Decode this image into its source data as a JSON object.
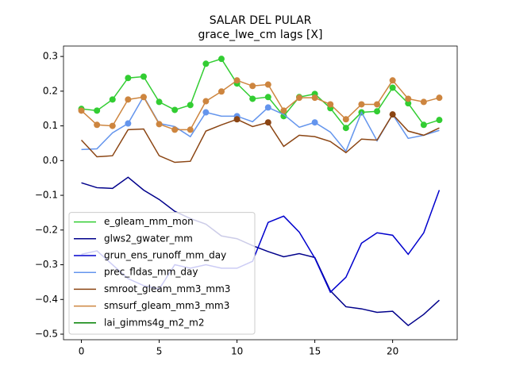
{
  "chart_data": {
    "type": "line",
    "title": "SALAR DEL PULAR",
    "subtitle": "grace_lwe_cm lags [X]",
    "x": [
      0,
      1,
      2,
      3,
      4,
      5,
      6,
      7,
      8,
      9,
      10,
      11,
      12,
      13,
      14,
      15,
      16,
      17,
      18,
      19,
      20,
      21,
      22,
      23
    ],
    "xlim": [
      -1.15,
      24.15
    ],
    "xticks": [
      0,
      5,
      10,
      15,
      20
    ],
    "ylim": [
      -0.516,
      0.33
    ],
    "yticks": [
      {
        "value": 0.3,
        "label": "0.3"
      },
      {
        "value": 0.2,
        "label": "0.2"
      },
      {
        "value": 0.1,
        "label": "0.1"
      },
      {
        "value": 0,
        "label": "0.0"
      },
      {
        "value": -0.1,
        "label": "−0.1"
      },
      {
        "value": -0.2,
        "label": "−0.2"
      },
      {
        "value": -0.3,
        "label": "−0.3"
      },
      {
        "value": -0.4,
        "label": "−0.4"
      },
      {
        "value": -0.5,
        "label": "−0.5"
      }
    ],
    "legend": "lower left",
    "series": [
      {
        "name": "e_gleam_mm_mon",
        "color": "#32cd32",
        "values": [
          0.149,
          0.144,
          0.176,
          0.238,
          0.242,
          0.169,
          0.146,
          0.16,
          0.279,
          0.293,
          0.222,
          0.178,
          0.183,
          0.128,
          0.183,
          0.192,
          0.151,
          0.094,
          0.139,
          0.142,
          0.21,
          0.165,
          0.103,
          0.117
        ],
        "marker_indices": [
          0,
          1,
          2,
          3,
          4,
          5,
          6,
          7,
          8,
          9,
          10,
          11,
          12,
          13,
          14,
          15,
          16,
          17,
          18,
          19,
          20,
          21,
          22,
          23
        ]
      },
      {
        "name": "glws2_gwater_mm",
        "color": "#00008b",
        "values": [
          -0.064,
          -0.078,
          -0.08,
          -0.048,
          -0.085,
          -0.112,
          -0.146,
          -0.167,
          -0.183,
          -0.217,
          -0.225,
          -0.245,
          -0.262,
          -0.277,
          -0.268,
          -0.279,
          -0.375,
          -0.421,
          -0.427,
          -0.437,
          -0.434,
          -0.475,
          -0.443,
          -0.402
        ],
        "marker_indices": []
      },
      {
        "name": "grun_ens_runoff_mm_day",
        "color": "#0000cd",
        "values": [
          -0.27,
          -0.26,
          -0.3,
          -0.34,
          -0.36,
          -0.37,
          -0.3,
          -0.31,
          -0.3,
          -0.31,
          -0.31,
          -0.29,
          -0.178,
          -0.16,
          -0.206,
          -0.281,
          -0.379,
          -0.336,
          -0.238,
          -0.208,
          -0.215,
          -0.27,
          -0.208,
          -0.085
        ],
        "marker_indices": []
      },
      {
        "name": "prec_fldas_mm_day",
        "color": "#6495ed",
        "values": [
          0.032,
          0.034,
          0.08,
          0.107,
          0.185,
          0.107,
          0.098,
          0.069,
          0.139,
          0.128,
          0.128,
          0.112,
          0.153,
          0.133,
          0.096,
          0.11,
          0.082,
          0.027,
          0.139,
          0.057,
          0.133,
          0.064,
          0.073,
          0.087
        ],
        "marker_indices": [
          3,
          8,
          10,
          12,
          15
        ]
      },
      {
        "name": "smroot_gleam_mm3_mm3",
        "color": "#8b4513",
        "values": [
          0.059,
          0.011,
          0.014,
          0.089,
          0.091,
          0.014,
          -0.005,
          -0.002,
          0.085,
          0.103,
          0.119,
          0.098,
          0.11,
          0.041,
          0.073,
          0.069,
          0.055,
          0.023,
          0.062,
          0.059,
          0.133,
          0.085,
          0.073,
          0.094
        ],
        "marker_indices": [
          10,
          12,
          20
        ]
      },
      {
        "name": "smsurf_gleam_mm3_mm3",
        "color": "#cd853f",
        "values": [
          0.144,
          0.103,
          0.1,
          0.176,
          0.183,
          0.105,
          0.089,
          0.089,
          0.171,
          0.199,
          0.231,
          0.215,
          0.219,
          0.144,
          0.181,
          0.181,
          0.162,
          0.119,
          0.162,
          0.162,
          0.231,
          0.178,
          0.169,
          0.181
        ],
        "marker_indices": [
          0,
          1,
          2,
          3,
          4,
          5,
          6,
          7,
          8,
          9,
          10,
          11,
          12,
          13,
          14,
          15,
          16,
          17,
          18,
          19,
          20,
          21,
          22,
          23
        ]
      },
      {
        "name": "lai_gimms4g_m2_m2",
        "color": "#008000",
        "values": [
          null,
          null,
          null,
          null,
          null,
          null,
          null,
          null,
          null,
          null,
          null,
          null,
          null,
          null,
          null,
          null,
          null,
          null,
          null,
          null,
          null,
          null,
          null,
          null
        ],
        "marker_indices": []
      }
    ]
  }
}
